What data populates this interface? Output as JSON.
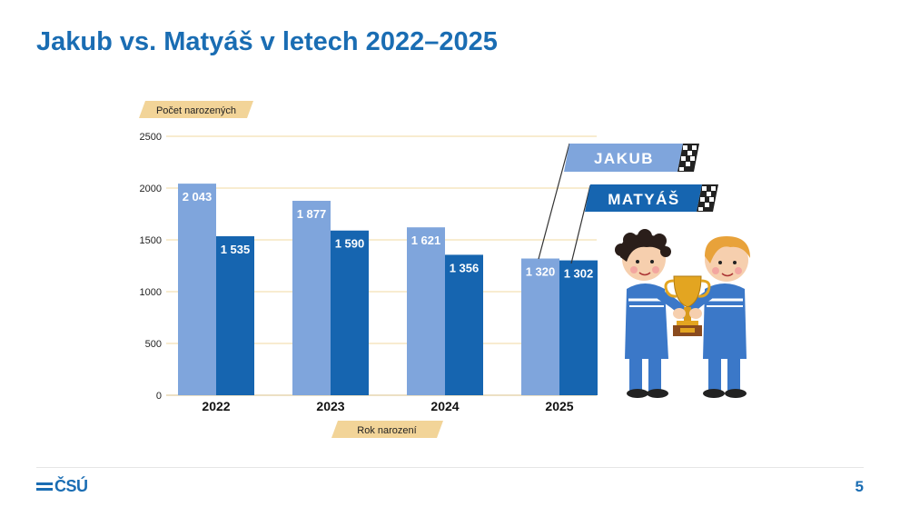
{
  "slide": {
    "title": "Jakub vs. Matyáš v letech 2022–2025",
    "page_number": "5",
    "logo_text": "ČSÚ"
  },
  "chart_data": {
    "type": "bar",
    "ylabel": "Počet narozených",
    "xlabel": "Rok narození",
    "ylim": [
      0,
      2500
    ],
    "yticks": [
      0,
      500,
      1000,
      1500,
      2000,
      2500
    ],
    "categories": [
      "2022",
      "2023",
      "2024",
      "2025"
    ],
    "series": [
      {
        "name": "JAKUB",
        "color": "#7fa5dc",
        "values": [
          2043,
          1877,
          1621,
          1320
        ],
        "labels": [
          "2 043",
          "1 877",
          "1 621",
          "1 320"
        ]
      },
      {
        "name": "MATYÁŠ",
        "color": "#1665b0",
        "values": [
          1535,
          1590,
          1356,
          1302
        ],
        "labels": [
          "1 535",
          "1 590",
          "1 356",
          "1 302"
        ]
      }
    ],
    "grid": true,
    "gridline_color": "#f0d9a0",
    "label_bg_color": "#f2d498"
  }
}
